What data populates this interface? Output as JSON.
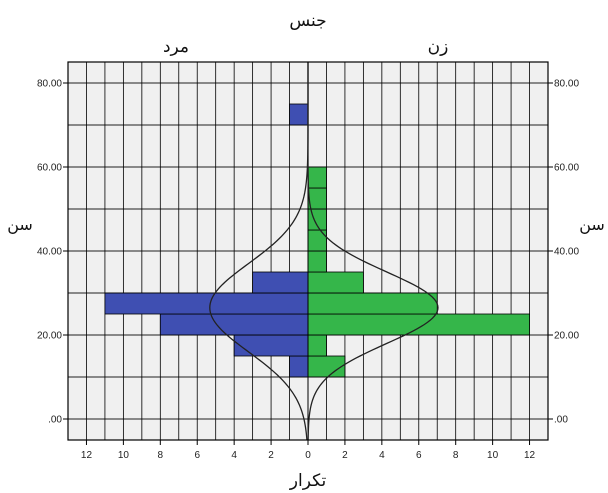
{
  "chart_data": {
    "type": "bar",
    "title": "جنس",
    "xlabel": "تکرار",
    "ylabel": "سن",
    "groups": [
      "مرد",
      "زن"
    ],
    "bin_width": 5,
    "ylim": [
      -5,
      85
    ],
    "xlim": [
      -13,
      13
    ],
    "y_ticks": [
      ".00",
      "20.00",
      "40.00",
      "60.00",
      "80.00"
    ],
    "x_ticks": [
      "12",
      "10",
      "8",
      "6",
      "4",
      "2",
      "0",
      "2",
      "4",
      "6",
      "8",
      "10",
      "12"
    ],
    "series": [
      {
        "name": "مرد",
        "color": "#3f4fb2",
        "bins": [
          {
            "lower": 10,
            "upper": 15,
            "count": 1
          },
          {
            "lower": 15,
            "upper": 20,
            "count": 4
          },
          {
            "lower": 20,
            "upper": 25,
            "count": 8
          },
          {
            "lower": 25,
            "upper": 30,
            "count": 11
          },
          {
            "lower": 30,
            "upper": 35,
            "count": 3
          },
          {
            "lower": 70,
            "upper": 75,
            "count": 1
          }
        ],
        "normal_curve": {
          "mean": 26.5,
          "sd": 10.5,
          "n": 28
        }
      },
      {
        "name": "زن",
        "color": "#35b64a",
        "bins": [
          {
            "lower": 10,
            "upper": 15,
            "count": 2
          },
          {
            "lower": 15,
            "upper": 20,
            "count": 1
          },
          {
            "lower": 20,
            "upper": 25,
            "count": 12
          },
          {
            "lower": 25,
            "upper": 30,
            "count": 7
          },
          {
            "lower": 30,
            "upper": 35,
            "count": 3
          },
          {
            "lower": 35,
            "upper": 40,
            "count": 1
          },
          {
            "lower": 40,
            "upper": 45,
            "count": 1
          },
          {
            "lower": 45,
            "upper": 50,
            "count": 1
          },
          {
            "lower": 50,
            "upper": 55,
            "count": 1
          },
          {
            "lower": 55,
            "upper": 60,
            "count": 1
          }
        ],
        "normal_curve": {
          "mean": 26.5,
          "sd": 8.5,
          "n": 30
        }
      }
    ],
    "grid": true,
    "legend": "none"
  }
}
